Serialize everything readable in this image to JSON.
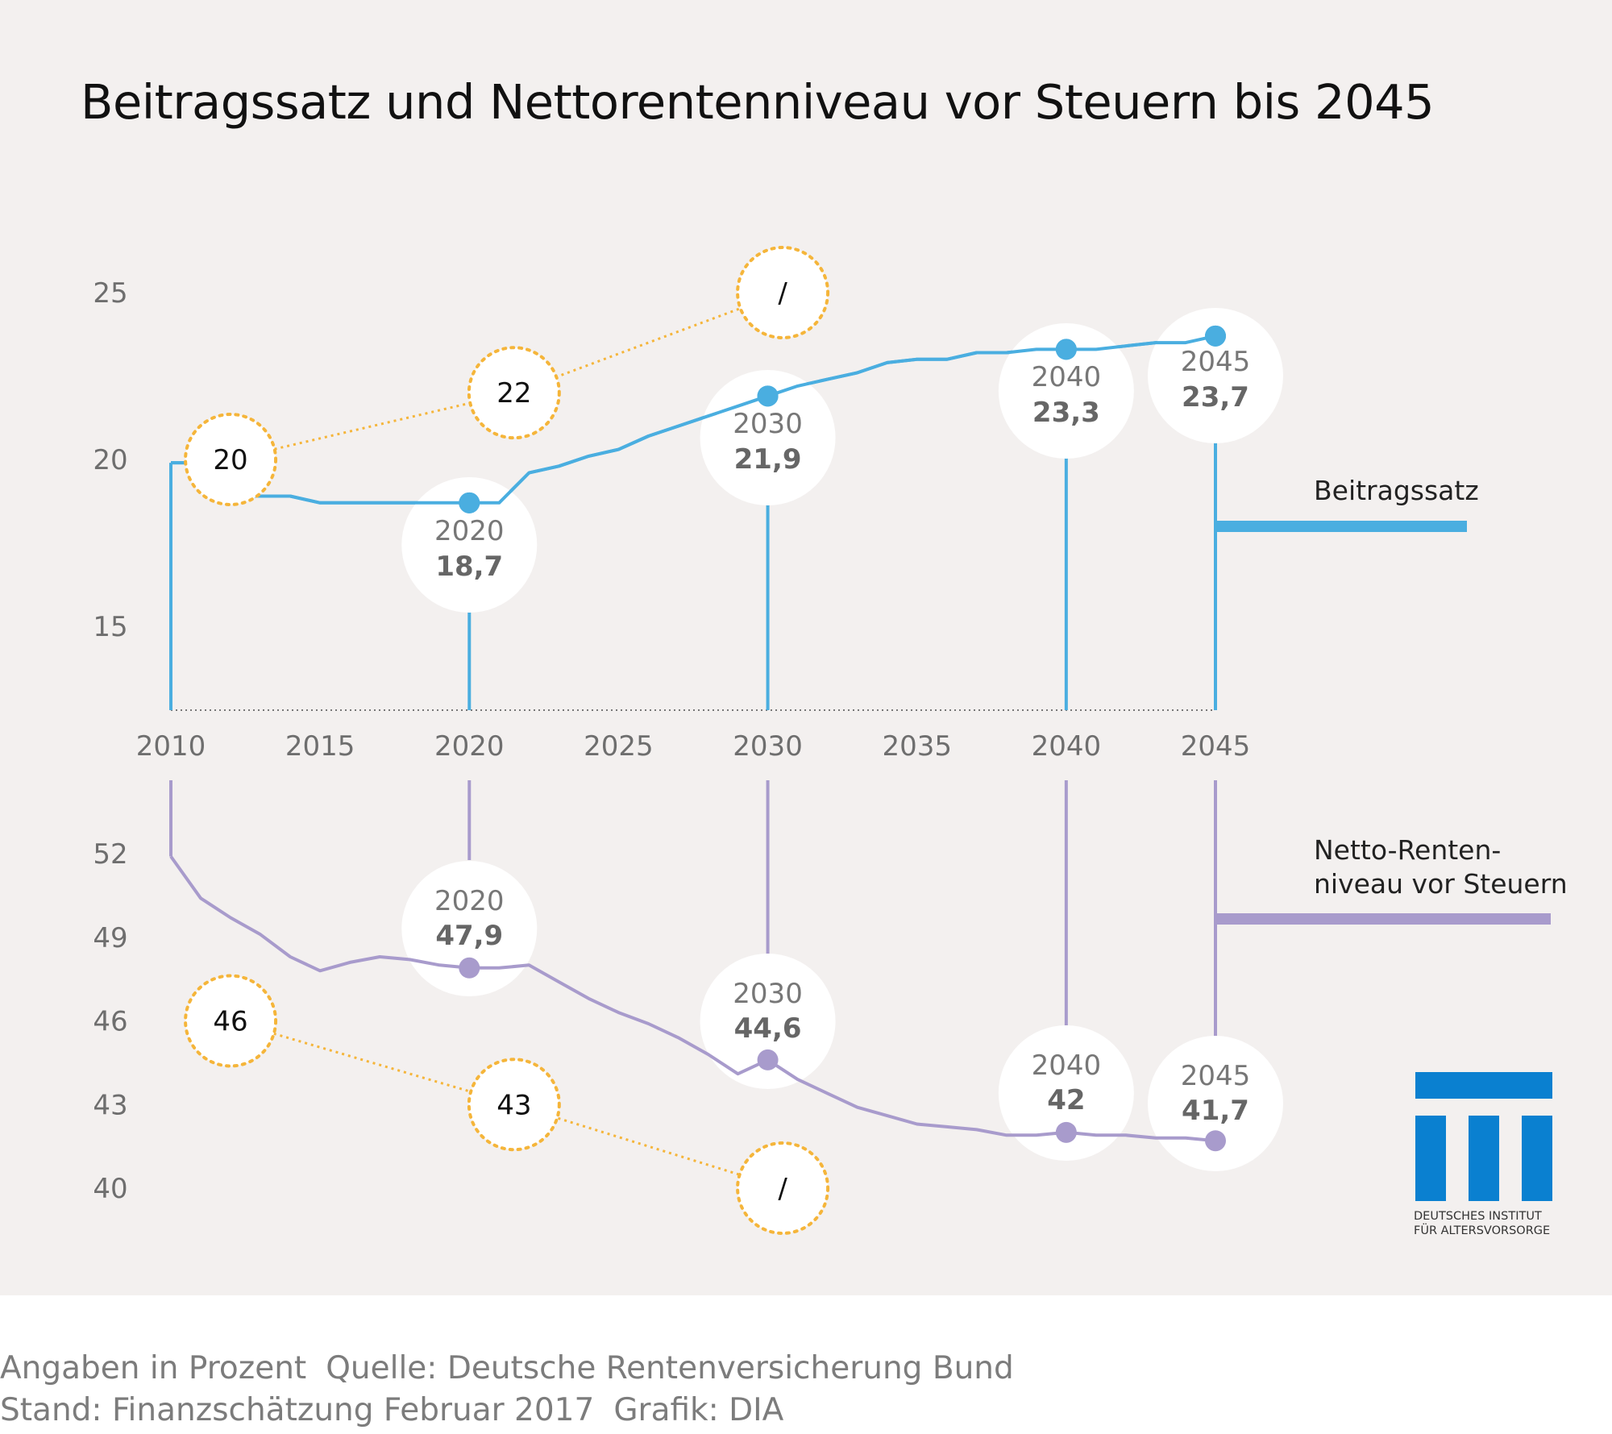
{
  "title": "Beitragssatz und Nettorentenniveau vor Steuern bis 2045",
  "colors": {
    "background": "#f3f0ef",
    "beitragssatz": "#4aaee0",
    "nettorente": "#a89bcc",
    "comparison": "#f5b53a",
    "logo": "#0a80d0"
  },
  "footer": {
    "unit_label": "Angaben in Prozent",
    "source": "Quelle: Deutsche Rentenversicherung Bund",
    "stand": "Stand: Finanzschätzung Februar 2017",
    "grafik": "Grafik: DIA"
  },
  "logo": {
    "line1": "DEUTSCHES INSTITUT",
    "line2": "FÜR ALTERSVORSORGE"
  },
  "chart_data": [
    {
      "type": "line",
      "series": [
        {
          "name": "Beitragssatz",
          "x": [
            2010,
            2011,
            2012,
            2013,
            2014,
            2015,
            2016,
            2017,
            2018,
            2019,
            2020,
            2021,
            2022,
            2023,
            2024,
            2025,
            2026,
            2027,
            2028,
            2029,
            2030,
            2031,
            2032,
            2033,
            2034,
            2035,
            2036,
            2037,
            2038,
            2039,
            2040,
            2041,
            2042,
            2043,
            2044,
            2045
          ],
          "values": [
            19.9,
            19.9,
            18.9,
            18.9,
            18.9,
            18.7,
            18.7,
            18.7,
            18.7,
            18.7,
            18.7,
            18.7,
            19.6,
            19.8,
            20.1,
            20.3,
            20.7,
            21.0,
            21.3,
            21.6,
            21.9,
            22.2,
            22.4,
            22.6,
            22.9,
            23.0,
            23.0,
            23.2,
            23.2,
            23.3,
            23.3,
            23.3,
            23.4,
            23.5,
            23.5,
            23.7
          ]
        }
      ],
      "highlights": [
        {
          "year": "2020",
          "value": "18,7"
        },
        {
          "year": "2030",
          "value": "21,9"
        },
        {
          "year": "2040",
          "value": "23,3"
        },
        {
          "year": "2045",
          "value": "23,7"
        }
      ],
      "comparison_points": [
        {
          "x": 2012,
          "value": 20,
          "label": "20"
        },
        {
          "x": 2021.5,
          "value": 22,
          "label": "22"
        },
        {
          "x": 2030.5,
          "value": 25,
          "label": "/"
        }
      ],
      "legend_label": "Beitragssatz",
      "y_ticks": [
        "25",
        "20",
        "15"
      ],
      "ylim": [
        12.5,
        25
      ]
    },
    {
      "type": "line",
      "series": [
        {
          "name": "Netto-Rentenniveau vor Steuern",
          "x": [
            2010,
            2011,
            2012,
            2013,
            2014,
            2015,
            2016,
            2017,
            2018,
            2019,
            2020,
            2021,
            2022,
            2023,
            2024,
            2025,
            2026,
            2027,
            2028,
            2029,
            2030,
            2031,
            2032,
            2033,
            2034,
            2035,
            2036,
            2037,
            2038,
            2039,
            2040,
            2041,
            2042,
            2043,
            2044,
            2045
          ],
          "values": [
            51.9,
            50.4,
            49.7,
            49.1,
            48.3,
            47.8,
            48.1,
            48.3,
            48.2,
            48.0,
            47.9,
            47.9,
            48.0,
            47.4,
            46.8,
            46.3,
            45.9,
            45.4,
            44.8,
            44.1,
            44.6,
            43.9,
            43.4,
            42.9,
            42.6,
            42.3,
            42.2,
            42.1,
            41.9,
            41.9,
            42.0,
            41.9,
            41.9,
            41.8,
            41.8,
            41.7
          ]
        }
      ],
      "highlights": [
        {
          "year": "2020",
          "value": "47,9"
        },
        {
          "year": "2030",
          "value": "44,6"
        },
        {
          "year": "2040",
          "value": "42"
        },
        {
          "year": "2045",
          "value": "41,7"
        }
      ],
      "comparison_points": [
        {
          "x": 2012,
          "value": 46,
          "label": "46"
        },
        {
          "x": 2021.5,
          "value": 43,
          "label": "43"
        },
        {
          "x": 2030.5,
          "value": 40,
          "label": "/"
        }
      ],
      "legend_label": "Netto-Renten-\nniveau vor Steuern",
      "y_ticks": [
        "52",
        "49",
        "46",
        "43",
        "40"
      ],
      "ylim": [
        40,
        52
      ]
    }
  ],
  "x_axis": {
    "ticks": [
      "2010",
      "2015",
      "2020",
      "2025",
      "2030",
      "2035",
      "2040",
      "2045"
    ]
  }
}
